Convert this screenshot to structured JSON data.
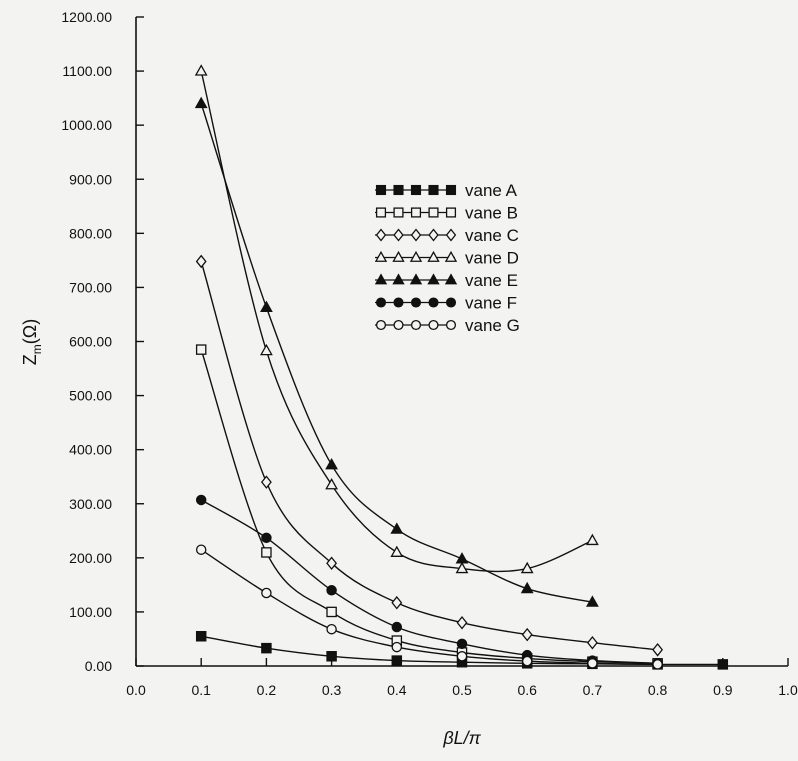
{
  "chart_data": {
    "type": "line",
    "xlabel": "βL/π",
    "ylabel_main": "Z",
    "ylabel_sub": "m",
    "ylabel_tail": "(Ω)",
    "xlim": [
      0.0,
      1.0
    ],
    "ylim": [
      0,
      1200
    ],
    "x_ticks": [
      "0.0",
      "0.1",
      "0.2",
      "0.3",
      "0.4",
      "0.5",
      "0.6",
      "0.7",
      "0.8",
      "0.9",
      "1.0"
    ],
    "y_ticks": [
      "0.00",
      "100.00",
      "200.00",
      "300.00",
      "400.00",
      "500.00",
      "600.00",
      "700.00",
      "800.00",
      "900.00",
      "1000.00",
      "1100.00",
      "1200.00"
    ],
    "grid": false,
    "legend_position": "upper-middle",
    "series": [
      {
        "name": "vane  A",
        "marker": "square",
        "filled": true,
        "x": [
          0.1,
          0.2,
          0.3,
          0.4,
          0.5,
          0.6,
          0.7,
          0.8,
          0.9
        ],
        "y": [
          55,
          33,
          18,
          10,
          7,
          5,
          4,
          3,
          3
        ]
      },
      {
        "name": "vane  B",
        "marker": "square",
        "filled": false,
        "x": [
          0.1,
          0.2,
          0.3,
          0.4,
          0.5,
          0.6,
          0.7,
          0.8
        ],
        "y": [
          585,
          210,
          100,
          47,
          25,
          14,
          8,
          5
        ]
      },
      {
        "name": "vane  C",
        "marker": "diamond",
        "filled": false,
        "x": [
          0.1,
          0.2,
          0.3,
          0.4,
          0.5,
          0.6,
          0.7,
          0.8
        ],
        "y": [
          748,
          340,
          190,
          117,
          80,
          58,
          43,
          30
        ]
      },
      {
        "name": "vane  D",
        "marker": "triangle",
        "filled": false,
        "x": [
          0.1,
          0.2,
          0.3,
          0.4,
          0.5,
          0.6,
          0.7
        ],
        "y": [
          1100,
          583,
          335,
          210,
          180,
          180,
          232
        ]
      },
      {
        "name": "vane  E",
        "marker": "triangle",
        "filled": true,
        "x": [
          0.1,
          0.2,
          0.3,
          0.4,
          0.5,
          0.6,
          0.7
        ],
        "y": [
          1040,
          663,
          372,
          253,
          198,
          143,
          118
        ]
      },
      {
        "name": "vane  F",
        "marker": "circle",
        "filled": true,
        "x": [
          0.1,
          0.2,
          0.3,
          0.4,
          0.5,
          0.6,
          0.7,
          0.8
        ],
        "y": [
          307,
          237,
          140,
          72,
          41,
          20,
          10,
          5
        ]
      },
      {
        "name": "vane  G",
        "marker": "circle",
        "filled": false,
        "x": [
          0.1,
          0.2,
          0.3,
          0.4,
          0.5,
          0.6,
          0.7,
          0.8
        ],
        "y": [
          215,
          135,
          68,
          35,
          18,
          9,
          5,
          3
        ]
      }
    ]
  }
}
